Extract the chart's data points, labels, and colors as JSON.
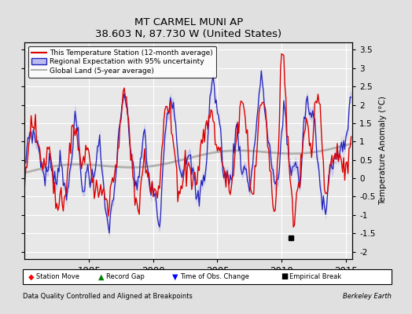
{
  "title": "MT CARMEL MUNI AP",
  "subtitle": "38.603 N, 87.730 W (United States)",
  "ylabel": "Temperature Anomaly (°C)",
  "xlabel_left": "Data Quality Controlled and Aligned at Breakpoints",
  "xlabel_right": "Berkeley Earth",
  "xlim": [
    1990.0,
    2015.5
  ],
  "ylim": [
    -2.2,
    3.7
  ],
  "yticks": [
    -2,
    -1.5,
    -1,
    -0.5,
    0,
    0.5,
    1,
    1.5,
    2,
    2.5,
    3,
    3.5
  ],
  "xticks": [
    1995,
    2000,
    2005,
    2010,
    2015
  ],
  "bg_color": "#e0e0e0",
  "plot_bg_color": "#e8e8e8",
  "grid_color": "#ffffff",
  "red_line_color": "#dd0000",
  "blue_line_color": "#2222bb",
  "blue_fill_color": "#bbbbee",
  "gray_line_color": "#b0b0b0",
  "empirical_break_x": 2010.75,
  "empirical_break_y": -1.62
}
